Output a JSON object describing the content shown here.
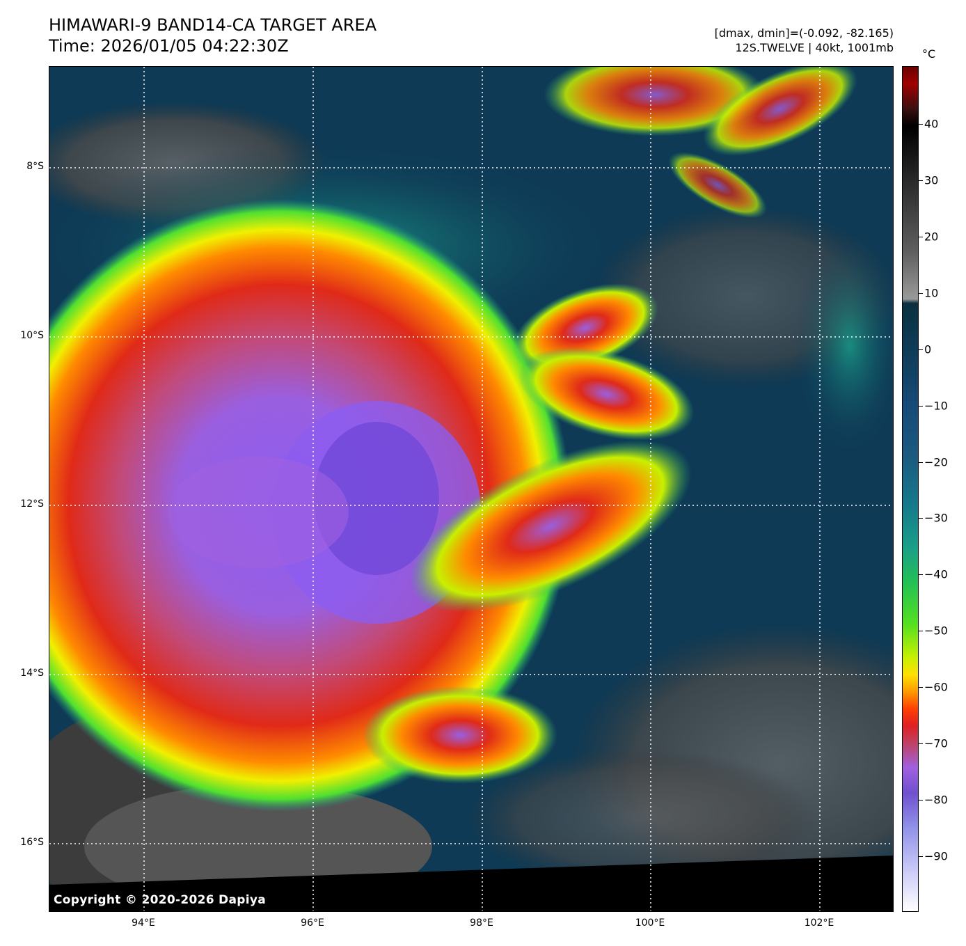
{
  "header": {
    "title_line1": "HIMAWARI-9 BAND14-CA TARGET AREA",
    "title_line2": "Time: 2026/01/05 04:22:30Z",
    "info_line1": "[dmax, dmin]=(-0.092, -82.165)",
    "info_line2": "12S.TWELVE | 40kt, 1001mb"
  },
  "map": {
    "copyright": "Copyright © 2020-2026 Dapiya",
    "lat_labels": [
      "8°S",
      "10°S",
      "12°S",
      "14°S",
      "16°S"
    ],
    "lon_labels": [
      "94°E",
      "96°E",
      "98°E",
      "100°E",
      "102°E"
    ]
  },
  "colorbar": {
    "unit": "°C",
    "tick_labels": [
      "40",
      "30",
      "20",
      "10",
      "0",
      "−10",
      "−20",
      "−30",
      "−40",
      "−50",
      "−60",
      "−70",
      "−80",
      "−90"
    ],
    "tick_values": [
      40,
      30,
      20,
      10,
      0,
      -10,
      -20,
      -30,
      -40,
      -50,
      -60,
      -70,
      -80,
      -90
    ]
  }
}
